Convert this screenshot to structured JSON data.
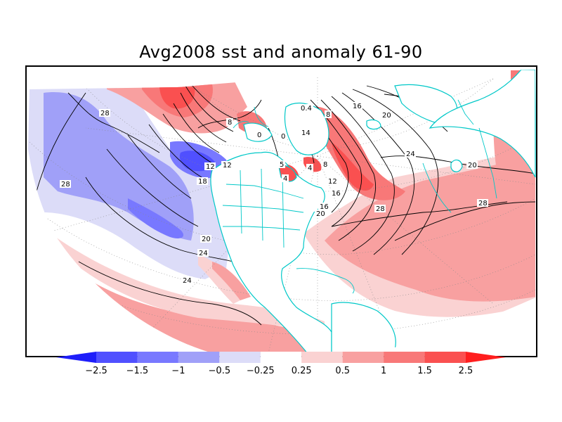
{
  "title": "Avg2008 sst and anomaly 61-90",
  "legend": {
    "ticks": [
      "-2.5",
      "-1.5",
      "-1",
      "-0.5",
      "-0.25",
      "0.25",
      "0.5",
      "1",
      "1.5",
      "2.5"
    ],
    "colors": [
      "#1e1efa",
      "#5050ff",
      "#7878ff",
      "#a0a0f8",
      "#dcdcf8",
      "#ffffff",
      "#fad2d2",
      "#f8a0a0",
      "#f87878",
      "#fa5050",
      "#ff1e1e"
    ]
  },
  "map": {
    "land_color": "#00c8c8",
    "contour_color": "#000000",
    "contour_labels": [
      "28",
      "28",
      "28",
      "28",
      "24",
      "24",
      "24",
      "20",
      "20",
      "20",
      "18",
      "16",
      "16",
      "12",
      "12",
      "12",
      "8",
      "8",
      "5",
      "4",
      "4",
      "0",
      "0",
      "0.4",
      "16",
      "20",
      "8",
      "14"
    ]
  }
}
